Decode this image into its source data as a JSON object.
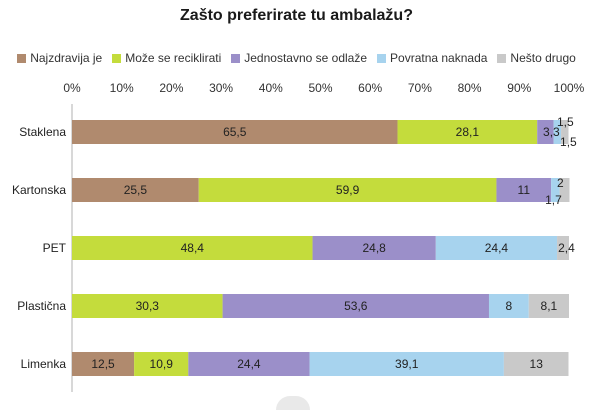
{
  "chart_data": {
    "type": "bar",
    "orientation": "horizontal",
    "stacked": true,
    "title": "Zašto preferirate tu ambalažu?",
    "categories": [
      "Staklena",
      "Kartonska",
      "PET",
      "Plastična",
      "Limenka"
    ],
    "x_ticks": [
      "0%",
      "10%",
      "20%",
      "30%",
      "40%",
      "50%",
      "60%",
      "70%",
      "80%",
      "90%",
      "100%"
    ],
    "xlim": [
      0,
      100
    ],
    "legend_position": "top",
    "grid": false,
    "series": [
      {
        "name": "Najzdravija je",
        "color": "#b08a6e",
        "values": [
          65.5,
          25.5,
          0,
          0,
          12.5
        ],
        "labels": [
          "65,5",
          "25,5",
          "",
          "",
          "12,5"
        ]
      },
      {
        "name": "Može se reciklirati",
        "color": "#c4dc3c",
        "values": [
          28.1,
          59.9,
          48.4,
          30.3,
          10.9
        ],
        "labels": [
          "28,1",
          "59,9",
          "48,4",
          "30,3",
          "10,9"
        ]
      },
      {
        "name": "Jednostavno se odlaže",
        "color": "#9b8fc9",
        "values": [
          3.3,
          11,
          24.8,
          53.6,
          24.4
        ],
        "labels": [
          "3,3",
          "11",
          "24,8",
          "53,6",
          "24,4"
        ]
      },
      {
        "name": "Povratna naknada",
        "color": "#a7d3ee",
        "values": [
          1.5,
          1.7,
          24.4,
          8,
          39.1
        ],
        "labels": [
          "1,5",
          "1,7",
          "24,4",
          "8",
          "39,1"
        ]
      },
      {
        "name": "Nešto drugo",
        "color": "#c9c9c9",
        "values": [
          1.5,
          2,
          2.4,
          8.1,
          13
        ],
        "labels": [
          "1,5",
          "2",
          "2,4",
          "8,1",
          "13"
        ]
      }
    ]
  }
}
